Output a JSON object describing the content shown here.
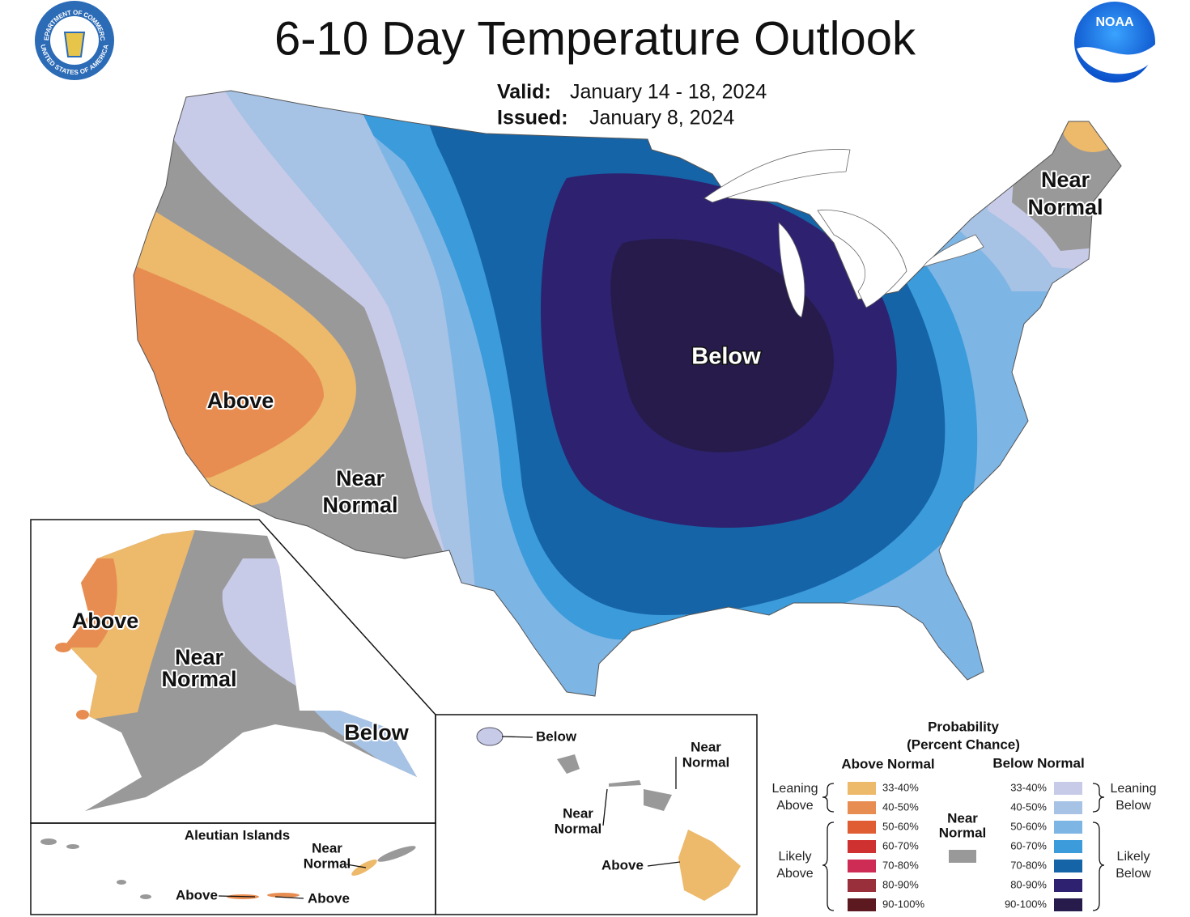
{
  "header": {
    "title": "6-10 Day Temperature Outlook",
    "valid_label": "Valid:",
    "valid": "January 14 - 18, 2024",
    "issued_label": "Issued:",
    "issued": "January 8, 2024",
    "commerce_seal_top": "DEPARTMENT OF COMMERCE",
    "commerce_seal_bottom": "UNITED STATES OF AMERICA",
    "noaa": "NOAA"
  },
  "conus_labels": [
    {
      "lines": [
        "Above"
      ]
    },
    {
      "lines": [
        "Near",
        "Normal"
      ]
    },
    {
      "lines": [
        "Below"
      ]
    },
    {
      "lines": [
        "Near",
        "Normal"
      ]
    }
  ],
  "alaska_labels": [
    {
      "lines": [
        "Above"
      ]
    },
    {
      "lines": [
        "Near",
        "Normal"
      ]
    },
    {
      "lines": [
        "Below"
      ]
    }
  ],
  "aleutians": {
    "title": "Aleutian Islands",
    "labels": [
      {
        "lines": [
          "Near",
          "Normal"
        ]
      },
      {
        "lines": [
          "Above"
        ]
      },
      {
        "lines": [
          "Above"
        ]
      }
    ]
  },
  "hawaii_labels": [
    {
      "lines": [
        "Below"
      ]
    },
    {
      "lines": [
        "Near",
        "Normal"
      ]
    },
    {
      "lines": [
        "Near",
        "Normal"
      ]
    },
    {
      "lines": [
        "Above"
      ]
    }
  ],
  "legend": {
    "title": [
      "Probability",
      "(Percent Chance)"
    ],
    "above_normal": {
      "heading": "Above Normal",
      "bins": [
        {
          "label": "33-40%",
          "color": "#edb96b"
        },
        {
          "label": "40-50%",
          "color": "#e88d51"
        },
        {
          "label": "50-60%",
          "color": "#e05d34"
        },
        {
          "label": "60-70%",
          "color": "#cf3030"
        },
        {
          "label": "70-80%",
          "color": "#cf2c55"
        },
        {
          "label": "80-90%",
          "color": "#982f3a"
        },
        {
          "label": "90-100%",
          "color": "#5c1a20"
        }
      ],
      "leaning": [
        "Leaning",
        "Above"
      ],
      "likely": [
        "Likely",
        "Above"
      ]
    },
    "near_normal": {
      "lines": [
        "Near",
        "Normal"
      ],
      "color": "#999999"
    },
    "below_normal": {
      "heading": "Below Normal",
      "bins": [
        {
          "label": "33-40%",
          "color": "#c8cbe8"
        },
        {
          "label": "40-50%",
          "color": "#a6c2e5"
        },
        {
          "label": "50-60%",
          "color": "#7db5e5"
        },
        {
          "label": "60-70%",
          "color": "#3c9bdb"
        },
        {
          "label": "70-80%",
          "color": "#1564a8"
        },
        {
          "label": "80-90%",
          "color": "#2e2270"
        },
        {
          "label": "90-100%",
          "color": "#261b4a"
        }
      ],
      "leaning": [
        "Leaning",
        "Below"
      ],
      "likely": [
        "Likely",
        "Below"
      ]
    }
  }
}
